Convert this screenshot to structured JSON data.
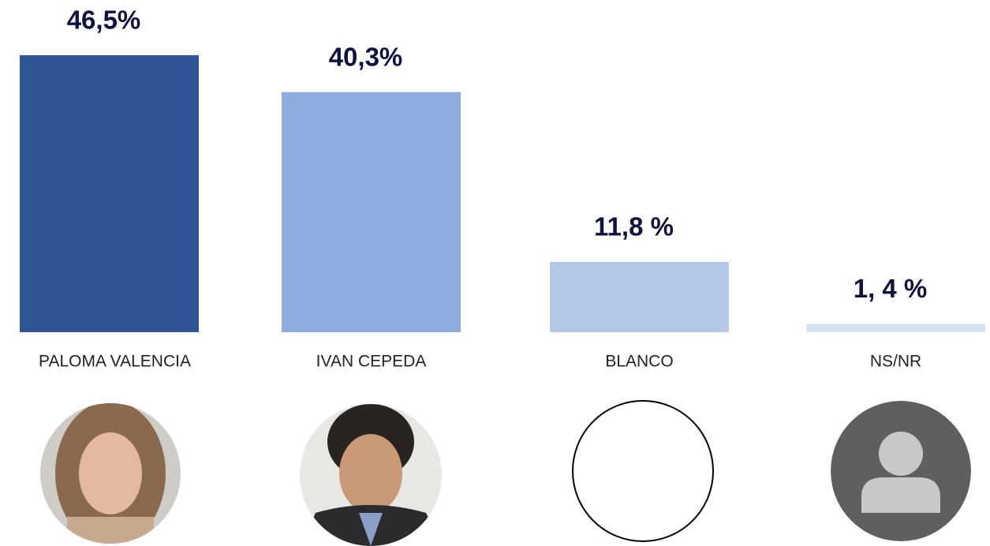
{
  "chart_data": {
    "type": "bar",
    "categories": [
      "PALOMA VALENCIA",
      "IVAN CEPEDA",
      "BLANCO",
      "NS/NR"
    ],
    "values": [
      46.5,
      40.3,
      11.8,
      1.4
    ],
    "value_labels": [
      "46,5%",
      "40,3%",
      "11,8 %",
      "1, 4 %"
    ],
    "colors": [
      "#2f5597",
      "#8faadc",
      "#b4c7e7",
      "#dae3f3"
    ]
  }
}
